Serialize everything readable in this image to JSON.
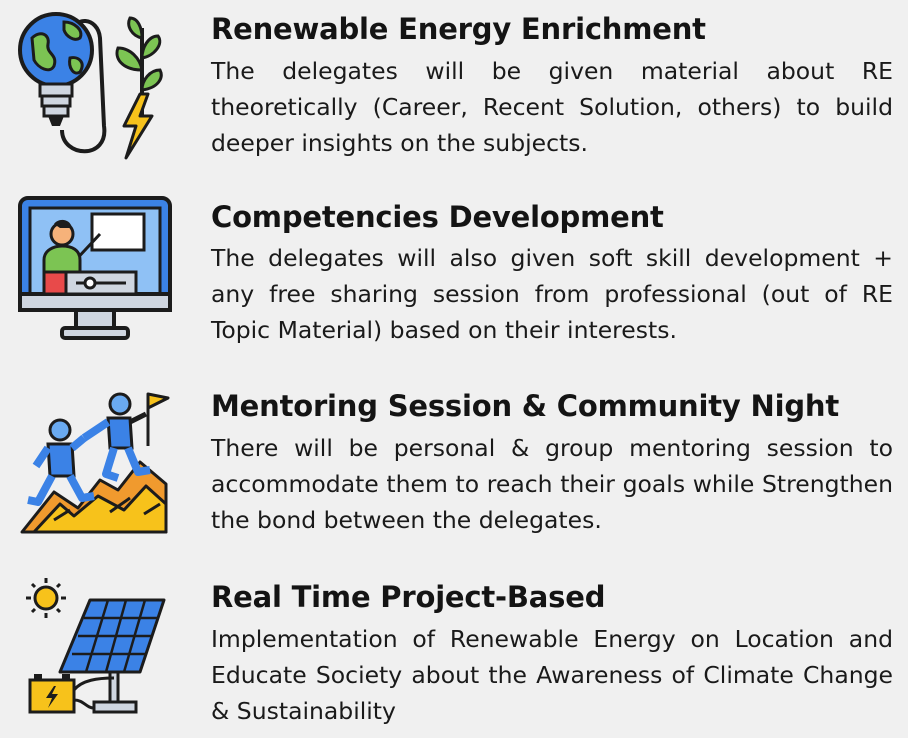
{
  "items": [
    {
      "icon": "lightbulb-globe-plant-icon",
      "title": "Renewable Energy Enrichment",
      "description": "The delegates will be given material about RE theoretically (Career, Recent Solution, others) to build deeper insights on the subjects."
    },
    {
      "icon": "computer-presenter-icon",
      "title": "Competencies Development",
      "description": "The delegates will also given soft skill development + any free sharing session from professional (out of RE Topic Material) based on their interests."
    },
    {
      "icon": "climbers-flag-mountain-icon",
      "title": "Mentoring Session & Community Night",
      "description": "There will be personal & group mentoring session to accommodate them to reach their goals while Strengthen the bond between the delegates."
    },
    {
      "icon": "solar-panel-battery-sun-icon",
      "title": "Real Time  Project-Based",
      "description": "Implementation of Renewable Energy on Location and Educate Society about the Awareness of Climate Change & Sustainability"
    }
  ],
  "colors": {
    "background": "#f0f0f0",
    "text": "#161616",
    "outline": "#1c1c1c",
    "blue": "#3b82e6",
    "green": "#7cc453",
    "yellow": "#f7c21b",
    "orange": "#f09a2e"
  }
}
